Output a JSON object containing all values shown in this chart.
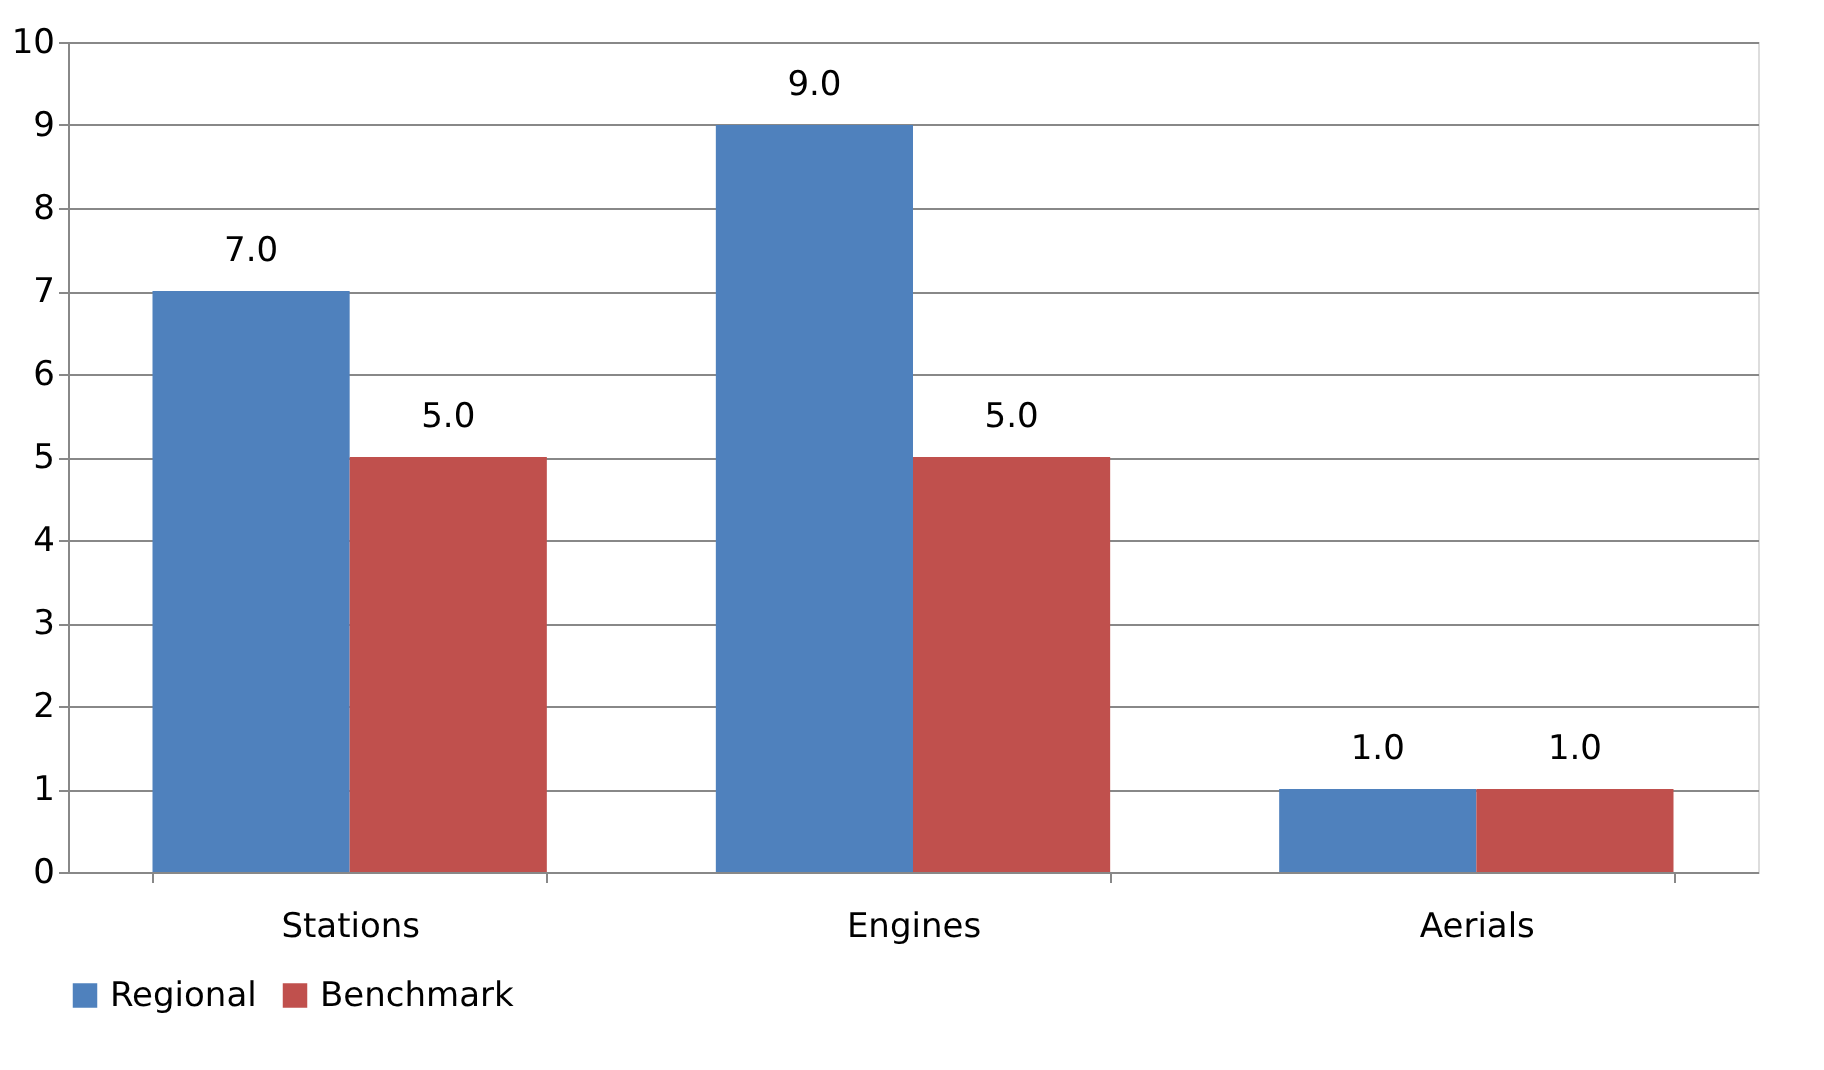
{
  "chart_data": {
    "type": "bar",
    "categories": [
      "Stations",
      "Engines",
      "Aerials"
    ],
    "series": [
      {
        "name": "Regional",
        "color": "#4f81bd",
        "values": [
          7,
          9,
          1
        ],
        "value_labels": [
          "7.0",
          "9.0",
          "1.0"
        ]
      },
      {
        "name": "Benchmark",
        "color": "#c0504d",
        "values": [
          5,
          5,
          1
        ],
        "value_labels": [
          "5.0",
          "5.0",
          "1.0"
        ]
      }
    ],
    "ylim": [
      0,
      10
    ],
    "yticks": [
      0,
      1,
      2,
      3,
      4,
      5,
      6,
      7,
      8,
      9,
      10
    ],
    "grid": "y",
    "legend": "bottom"
  }
}
